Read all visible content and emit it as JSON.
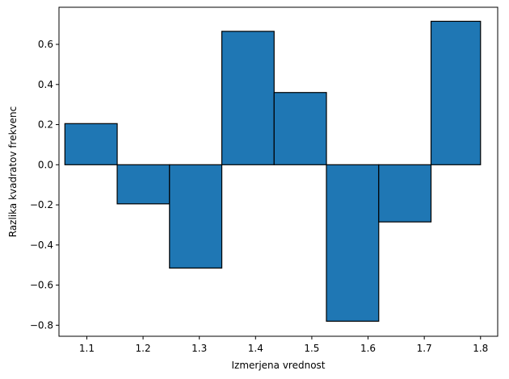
{
  "chart_data": {
    "type": "bar",
    "title": "",
    "xlabel": "Izmerjena vrednost",
    "ylabel": "Razlika kvadratov frekvenc",
    "xlim": [
      1.0505,
      1.8305
    ],
    "ylim": [
      -0.855,
      0.785
    ],
    "bin_edges": [
      1.061,
      1.154,
      1.247,
      1.34,
      1.433,
      1.526,
      1.619,
      1.712,
      1.8
    ],
    "values": [
      0.205,
      -0.195,
      -0.515,
      0.665,
      0.36,
      -0.78,
      -0.285,
      0.715
    ],
    "xticks": [
      1.1,
      1.2,
      1.3,
      1.4,
      1.5,
      1.6,
      1.7,
      1.8
    ],
    "xtick_labels": [
      "1.1",
      "1.2",
      "1.3",
      "1.4",
      "1.5",
      "1.6",
      "1.7",
      "1.8"
    ],
    "yticks": [
      -0.8,
      -0.6,
      -0.4,
      -0.2,
      0.0,
      0.2,
      0.4,
      0.6
    ],
    "ytick_labels": [
      "−0.8",
      "−0.6",
      "−0.4",
      "−0.2",
      "0.0",
      "0.2",
      "0.4",
      "0.6"
    ],
    "grid": false,
    "colors": {
      "bar_fill": "#1f77b4",
      "bar_edge": "#000000",
      "axes": "#000000"
    }
  }
}
